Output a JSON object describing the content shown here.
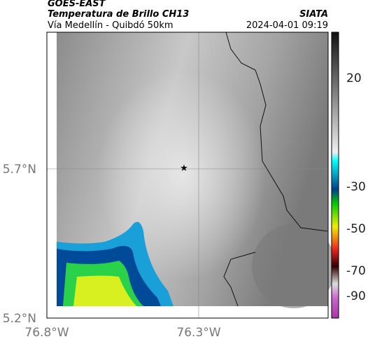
{
  "header": {
    "source": "GOES-EAST",
    "title": "Temperatura de Brillo CH13",
    "org": "SIATA",
    "route": "Vía Medellín - Quibdó 50km",
    "datetime": "2024-04-01 09:19"
  },
  "map": {
    "lat_labels": [
      "5.7°N",
      "5.2°N"
    ],
    "lon_labels": [
      "76.8°W",
      "76.3°W"
    ]
  },
  "colorbar": {
    "labels": [
      "20",
      "-30",
      "-50",
      "-70",
      "-90"
    ]
  }
}
